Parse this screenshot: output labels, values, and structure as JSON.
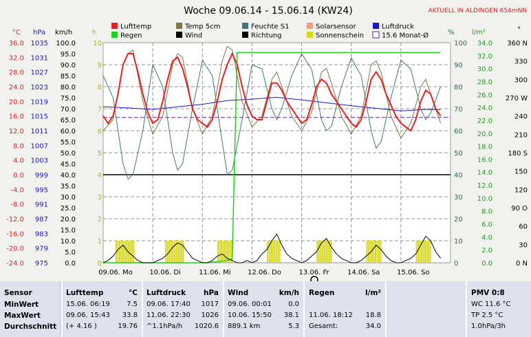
{
  "title": "Woche 09.06.14 - 15.06.14 (KW24)",
  "station_label": "AKTUELL IN ALDINGEN 654mNN",
  "colors": {
    "lufttemp": "#e82020",
    "temp5cm": "#807840",
    "feuchte": "#407878",
    "solarsensor": "#f0a080",
    "luftdruck": "#1818d0",
    "regen": "#20d020",
    "wind": "#000000",
    "richtung": "#000000",
    "sonnenschein": "#d8d820",
    "monat": "#602090"
  },
  "legend": [
    {
      "name": "Lufttemp",
      "color": "#e82020",
      "style": "box"
    },
    {
      "name": "Temp 5cm",
      "color": "#807840",
      "style": "box"
    },
    {
      "name": "Feuchte S1",
      "color": "#407878",
      "style": "box"
    },
    {
      "name": "Solarsensor",
      "color": "#f0a080",
      "style": "box"
    },
    {
      "name": "Luftdruck",
      "color": "#1818d0",
      "style": "box"
    },
    {
      "name": "Regen",
      "color": "#20d020",
      "style": "box"
    },
    {
      "name": "Wind",
      "color": "#000000",
      "style": "box"
    },
    {
      "name": "Richtung",
      "color": "#000000",
      "style": "box"
    },
    {
      "name": "Sonnenschein",
      "color": "#d8d820",
      "style": "box"
    },
    {
      "name": "15.6 Monat-Ø",
      "color": "#602090",
      "style": "outline"
    }
  ],
  "axes": {
    "temp": {
      "unit": "°C",
      "ticks": [
        "36.0",
        "32.0",
        "28.0",
        "24.0",
        "20.0",
        "16.0",
        "12.0",
        "8.0",
        "4.0",
        "0.0",
        "-4.0",
        "-8.0",
        "-12.0",
        "-16.0",
        "-20.0",
        "-24.0"
      ]
    },
    "pressure": {
      "unit": "hPa",
      "ticks": [
        "1035",
        "1031",
        "1027",
        "1023",
        "1019",
        "1015",
        "1011",
        "1007",
        "1003",
        "999",
        "995",
        "991",
        "987",
        "983",
        "979",
        "975"
      ]
    },
    "wind": {
      "unit": "km/h",
      "ticks": [
        "100.0",
        "95.0",
        "90.0",
        "85.0",
        "80.0",
        "75.0",
        "70.0",
        "65.0",
        "60.0",
        "55.0",
        "50.0",
        "45.0",
        "40.0",
        "35.0",
        "30.0",
        "25.0",
        "20.0",
        "15.0",
        "10.0",
        "5.0",
        "0.0"
      ]
    },
    "hours": {
      "unit": "h",
      "ticks": [
        "10",
        "9",
        "8",
        "7",
        "6",
        "5",
        "4",
        "3",
        "2",
        "1",
        "0"
      ]
    },
    "humidity": {
      "unit": "%",
      "ticks": [
        "100",
        "90",
        "80",
        "70",
        "60",
        "50",
        "40",
        "30",
        "20",
        "10",
        "0"
      ]
    },
    "rain": {
      "unit": "l/m²",
      "ticks": [
        "34.0",
        "32.0",
        "30.0",
        "28.0",
        "26.0",
        "24.0",
        "22.0",
        "20.0",
        "18.0",
        "16.0",
        "14.0",
        "12.0",
        "10.0",
        "8.0",
        "6.0",
        "4.0",
        "2.0",
        "0.0"
      ]
    },
    "direction": {
      "unit": "°",
      "ticks": [
        "360 N",
        "330",
        "300",
        "270 W",
        "240",
        "210",
        "180 S",
        "150",
        "120",
        "90 O",
        "60",
        "30",
        "0 N"
      ]
    }
  },
  "chart_data": {
    "type": "line",
    "title": "Woche 09.06.14 - 15.06.14 (KW24)",
    "x_labels": [
      "09.06. Mo",
      "10.06. Di",
      "11.06. Mi",
      "12.06. Do",
      "13.06. Fr",
      "14.06. Sa",
      "15.06. So"
    ],
    "x_days": [
      0,
      1,
      2,
      3,
      4,
      5,
      6
    ],
    "x_range": [
      0,
      7
    ],
    "temp_range": [
      -24,
      36
    ],
    "wind_range": [
      0,
      100
    ],
    "humidity_range": [
      0,
      100
    ],
    "rain_range": [
      0,
      35.6
    ],
    "hours_range": [
      0,
      10
    ],
    "monthly_mean_temp": 15.6,
    "series": [
      {
        "name": "Lufttemp",
        "axis": "temp",
        "x": [
          0,
          0.1,
          0.2,
          0.3,
          0.4,
          0.5,
          0.6,
          0.7,
          0.8,
          0.9,
          1,
          1.1,
          1.2,
          1.3,
          1.4,
          1.5,
          1.6,
          1.7,
          1.8,
          1.9,
          2,
          2.1,
          2.2,
          2.3,
          2.4,
          2.5,
          2.6,
          2.7,
          2.8,
          2.9,
          3,
          3.1,
          3.2,
          3.3,
          3.4,
          3.5,
          3.6,
          3.7,
          3.8,
          3.9,
          4,
          4.1,
          4.2,
          4.3,
          4.4,
          4.5,
          4.6,
          4.7,
          4.8,
          4.9,
          5,
          5.1,
          5.2,
          5.3,
          5.4,
          5.5,
          5.6,
          5.7,
          5.8,
          5.9,
          6,
          6.1,
          6.2,
          6.3,
          6.4,
          6.5,
          6.6,
          6.7,
          6.8
        ],
        "y": [
          16,
          14,
          16,
          22,
          30,
          33,
          33,
          28,
          22,
          17,
          14,
          15,
          20,
          26,
          31,
          32,
          29,
          24,
          18,
          15,
          14,
          13,
          15,
          20,
          26,
          30,
          33,
          30,
          24,
          19,
          16,
          15,
          15,
          20,
          25,
          25,
          23,
          20,
          18,
          16,
          14,
          15,
          19,
          24,
          26,
          25,
          22,
          20,
          18,
          16,
          14,
          13,
          15,
          20,
          26,
          28,
          26,
          22,
          19,
          16,
          14,
          13,
          12,
          15,
          20,
          23,
          22,
          18,
          16
        ]
      },
      {
        "name": "Temp 5cm",
        "axis": "temp",
        "x": [
          0,
          0.2,
          0.4,
          0.5,
          0.6,
          0.8,
          1,
          1.2,
          1.4,
          1.5,
          1.6,
          1.8,
          2,
          2.2,
          2.4,
          2.5,
          2.6,
          2.8,
          3,
          3.2,
          3.4,
          3.5,
          3.6,
          3.8,
          4,
          4.2,
          4.4,
          4.5,
          4.6,
          4.8,
          5,
          5.2,
          5.4,
          5.5,
          5.6,
          5.8,
          6,
          6.2,
          6.4,
          6.5,
          6.6,
          6.8
        ],
        "y": [
          12,
          15,
          30,
          33,
          34,
          20,
          11,
          16,
          30,
          33,
          32,
          18,
          11,
          16,
          31,
          35,
          34,
          20,
          13,
          16,
          26,
          28,
          24,
          16,
          12,
          17,
          28,
          29,
          25,
          16,
          11,
          16,
          30,
          31,
          28,
          16,
          10,
          14,
          24,
          26,
          22,
          14
        ]
      },
      {
        "name": "Feuchte S1",
        "axis": "humidity",
        "x": [
          0,
          0.2,
          0.4,
          0.5,
          0.6,
          0.8,
          1,
          1.2,
          1.4,
          1.5,
          1.6,
          1.8,
          2,
          2.2,
          2.4,
          2.5,
          2.6,
          2.8,
          3,
          3.2,
          3.4,
          3.5,
          3.6,
          3.8,
          4,
          4.2,
          4.4,
          4.5,
          4.6,
          4.8,
          5,
          5.2,
          5.4,
          5.5,
          5.6,
          5.8,
          6,
          6.2,
          6.4,
          6.5,
          6.6,
          6.8
        ],
        "y": [
          85,
          75,
          45,
          38,
          40,
          60,
          90,
          80,
          50,
          42,
          45,
          70,
          92,
          85,
          55,
          40,
          42,
          65,
          90,
          88,
          70,
          65,
          70,
          85,
          95,
          88,
          65,
          60,
          62,
          80,
          93,
          85,
          60,
          52,
          55,
          75,
          92,
          88,
          70,
          65,
          68,
          80
        ]
      },
      {
        "name": "Luftdruck",
        "axis": "temp",
        "x": [
          0,
          0.5,
          1,
          1.5,
          2,
          2.5,
          3,
          3.5,
          4,
          4.5,
          5,
          5.5,
          6,
          6.5,
          6.8
        ],
        "y": [
          18.5,
          18.2,
          17.8,
          18.5,
          19.2,
          20.2,
          20.6,
          21.1,
          20.4,
          19.6,
          18.8,
          18.1,
          17.4,
          17.8,
          17.7
        ]
      },
      {
        "name": "Wind",
        "axis": "wind",
        "x": [
          0,
          0.1,
          0.2,
          0.3,
          0.4,
          0.5,
          0.6,
          0.7,
          0.8,
          0.9,
          1,
          1.1,
          1.2,
          1.3,
          1.4,
          1.5,
          1.6,
          1.7,
          1.8,
          1.9,
          2,
          2.1,
          2.2,
          2.3,
          2.4,
          2.5,
          2.6,
          2.7,
          2.8,
          2.9,
          3,
          3.1,
          3.2,
          3.3,
          3.4,
          3.5,
          3.6,
          3.7,
          3.8,
          3.9,
          4,
          4.1,
          4.2,
          4.3,
          4.4,
          4.5,
          4.6,
          4.7,
          4.8,
          4.9,
          5,
          5.1,
          5.2,
          5.3,
          5.4,
          5.5,
          5.6,
          5.7,
          5.8,
          5.9,
          6,
          6.1,
          6.2,
          6.3,
          6.4,
          6.5,
          6.6,
          6.7,
          6.8
        ],
        "y": [
          0,
          1,
          3,
          6,
          8,
          5,
          3,
          1,
          0,
          0,
          0,
          1,
          2,
          4,
          7,
          9,
          8,
          5,
          2,
          1,
          0,
          0,
          1,
          3,
          4,
          2,
          1,
          0,
          0,
          1,
          0,
          1,
          4,
          6,
          10,
          13,
          8,
          4,
          2,
          1,
          0,
          1,
          3,
          5,
          9,
          11,
          7,
          4,
          2,
          1,
          0,
          0,
          1,
          3,
          5,
          8,
          6,
          3,
          1,
          0,
          0,
          1,
          2,
          4,
          8,
          12,
          10,
          5,
          2
        ]
      },
      {
        "name": "Regen",
        "axis": "rain",
        "x": [
          0,
          1,
          1.9,
          2.1,
          2.45,
          2.6,
          2.7,
          3,
          3.5,
          4,
          5,
          6,
          6.8
        ],
        "y": [
          0,
          0,
          0,
          0,
          0.3,
          0.6,
          34.0,
          34.0,
          34.0,
          34.0,
          34.0,
          34.0,
          34.0
        ]
      }
    ],
    "sunshine_blocks": [
      [
        0.25,
        0.6
      ],
      [
        1.25,
        1.6
      ],
      [
        2.3,
        2.6
      ],
      [
        3.3,
        3.55
      ],
      [
        4.3,
        4.6
      ],
      [
        5.3,
        5.6
      ],
      [
        6.3,
        6.6
      ]
    ]
  },
  "table": {
    "sensor": {
      "header": "Sensor",
      "rows": [
        "MinWert",
        "MaxWert",
        "Durchschnitt"
      ]
    },
    "lufttemp": {
      "header": "Lufttemp",
      "unit": "°C",
      "rows": [
        [
          "15.06.  06:19",
          "7.5"
        ],
        [
          "09.06.  15:43",
          "33.8"
        ],
        [
          "(+ 4.16 )",
          "19.76"
        ]
      ]
    },
    "luftdruck": {
      "header": "Luftdruck",
      "unit": "hPa",
      "rows": [
        [
          "09.06.  17:40",
          "1017"
        ],
        [
          "11.06.  22:30",
          "1026"
        ],
        [
          "^1.1hPa/h",
          "1020.6"
        ]
      ]
    },
    "wind": {
      "header": "Wind",
      "unit": "km/h",
      "rows": [
        [
          "09.06.  00:01",
          "0.0"
        ],
        [
          "10.06.  15:50",
          "38.1"
        ],
        [
          "889.1 km",
          "5.3"
        ]
      ]
    },
    "regen": {
      "header": "Regen",
      "unit": "l/m²",
      "rows": [
        [
          "",
          ""
        ],
        [
          "11.06.  18:12",
          "18.8"
        ],
        [
          "Gesamt:",
          "34.0"
        ]
      ]
    },
    "pmv": {
      "header": "PMV 0:8",
      "rows": [
        "WC 11.6 °C",
        "TP 2.5 °C",
        "1.0hPa/3h"
      ]
    }
  }
}
